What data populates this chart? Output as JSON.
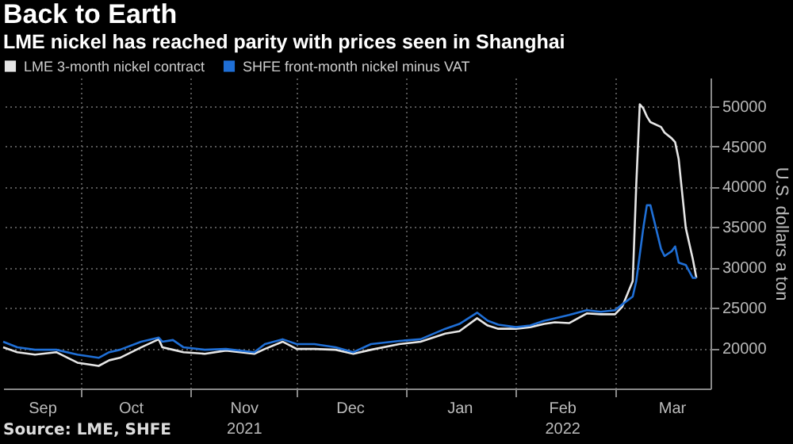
{
  "chart_data": {
    "type": "line",
    "title": "Back to Earth",
    "subtitle": "LME nickel has reached parity with prices seen in Shanghai",
    "ylabel": "U.S. dollars a ton",
    "x": [
      "2021-09-09",
      "2021-09-13",
      "2021-09-18",
      "2021-09-24",
      "2021-09-30",
      "2021-10-06",
      "2021-10-09",
      "2021-10-12",
      "2021-10-18",
      "2021-10-23",
      "2021-10-24",
      "2021-10-27",
      "2021-10-30",
      "2021-11-05",
      "2021-11-11",
      "2021-11-19",
      "2021-11-22",
      "2021-11-27",
      "2021-12-01",
      "2021-12-06",
      "2021-12-12",
      "2021-12-17",
      "2021-12-22",
      "2021-12-30",
      "2022-01-05",
      "2022-01-12",
      "2022-01-16",
      "2022-01-21",
      "2022-01-24",
      "2022-01-27",
      "2022-02-01",
      "2022-02-05",
      "2022-02-09",
      "2022-02-12",
      "2022-02-16",
      "2022-02-21",
      "2022-02-25",
      "2022-03-01",
      "2022-03-03",
      "2022-03-06",
      "2022-03-07",
      "2022-03-08",
      "2022-03-09",
      "2022-03-10",
      "2022-03-11",
      "2022-03-14",
      "2022-03-15",
      "2022-03-17",
      "2022-03-18",
      "2022-03-19",
      "2022-03-21",
      "2022-03-23",
      "2022-03-24"
    ],
    "series": [
      {
        "name": "LME 3-month nickel contract",
        "color": "#e6e6e6",
        "values": [
          20100,
          19500,
          19200,
          19500,
          18200,
          17800,
          18500,
          18800,
          20100,
          21100,
          20100,
          19800,
          19500,
          19300,
          19700,
          19300,
          19900,
          20800,
          19900,
          19900,
          19800,
          19300,
          19800,
          20500,
          20800,
          21800,
          22100,
          23700,
          22800,
          22400,
          22400,
          22600,
          23000,
          23200,
          23100,
          24300,
          24200,
          24200,
          25100,
          28300,
          40200,
          50200,
          49700,
          48700,
          48000,
          47400,
          46700,
          46000,
          45500,
          43400,
          34900,
          31000,
          28700
        ]
      },
      {
        "name": "SHFE front-month nickel minus VAT",
        "color": "#1f6fd6",
        "values": [
          20800,
          20100,
          19800,
          19800,
          19200,
          18800,
          19500,
          19800,
          20800,
          21300,
          20800,
          21000,
          20100,
          19800,
          19900,
          19500,
          20500,
          21100,
          20500,
          20500,
          20100,
          19500,
          20500,
          20900,
          21100,
          22400,
          23000,
          24400,
          23400,
          22900,
          22600,
          22800,
          23400,
          23700,
          24100,
          24700,
          24500,
          24700,
          25400,
          26400,
          28300,
          31600,
          34900,
          37700,
          37700,
          32300,
          31400,
          32000,
          32600,
          30600,
          30300,
          28700,
          28700
        ]
      }
    ],
    "xlim": [
      "2021-09-09",
      "2022-03-28"
    ],
    "xticks": [
      {
        "value": "2021-09-20",
        "label": "Sep"
      },
      {
        "value": "2021-10-01",
        "label": null
      },
      {
        "value": "2021-10-15",
        "label": "Oct"
      },
      {
        "value": "2021-11-01",
        "label": null
      },
      {
        "value": "2021-11-16",
        "label": "Nov\n2021"
      },
      {
        "value": "2021-12-01",
        "label": null
      },
      {
        "value": "2021-12-16",
        "label": "Dec"
      },
      {
        "value": "2022-01-01",
        "label": null
      },
      {
        "value": "2022-01-16",
        "label": "Jan"
      },
      {
        "value": "2022-02-01",
        "label": null
      },
      {
        "value": "2022-02-14",
        "label": "Feb\n2022"
      },
      {
        "value": "2022-03-01",
        "label": null
      },
      {
        "value": "2022-03-17",
        "label": "Mar"
      }
    ],
    "ylim": [
      15000,
      53500
    ],
    "yticks": [
      20000,
      25000,
      30000,
      35000,
      40000,
      45000,
      50000
    ],
    "grid": true,
    "legend": "top left",
    "line_style": "solid",
    "annotations": [
      "Source: LME, SHFE"
    ]
  }
}
